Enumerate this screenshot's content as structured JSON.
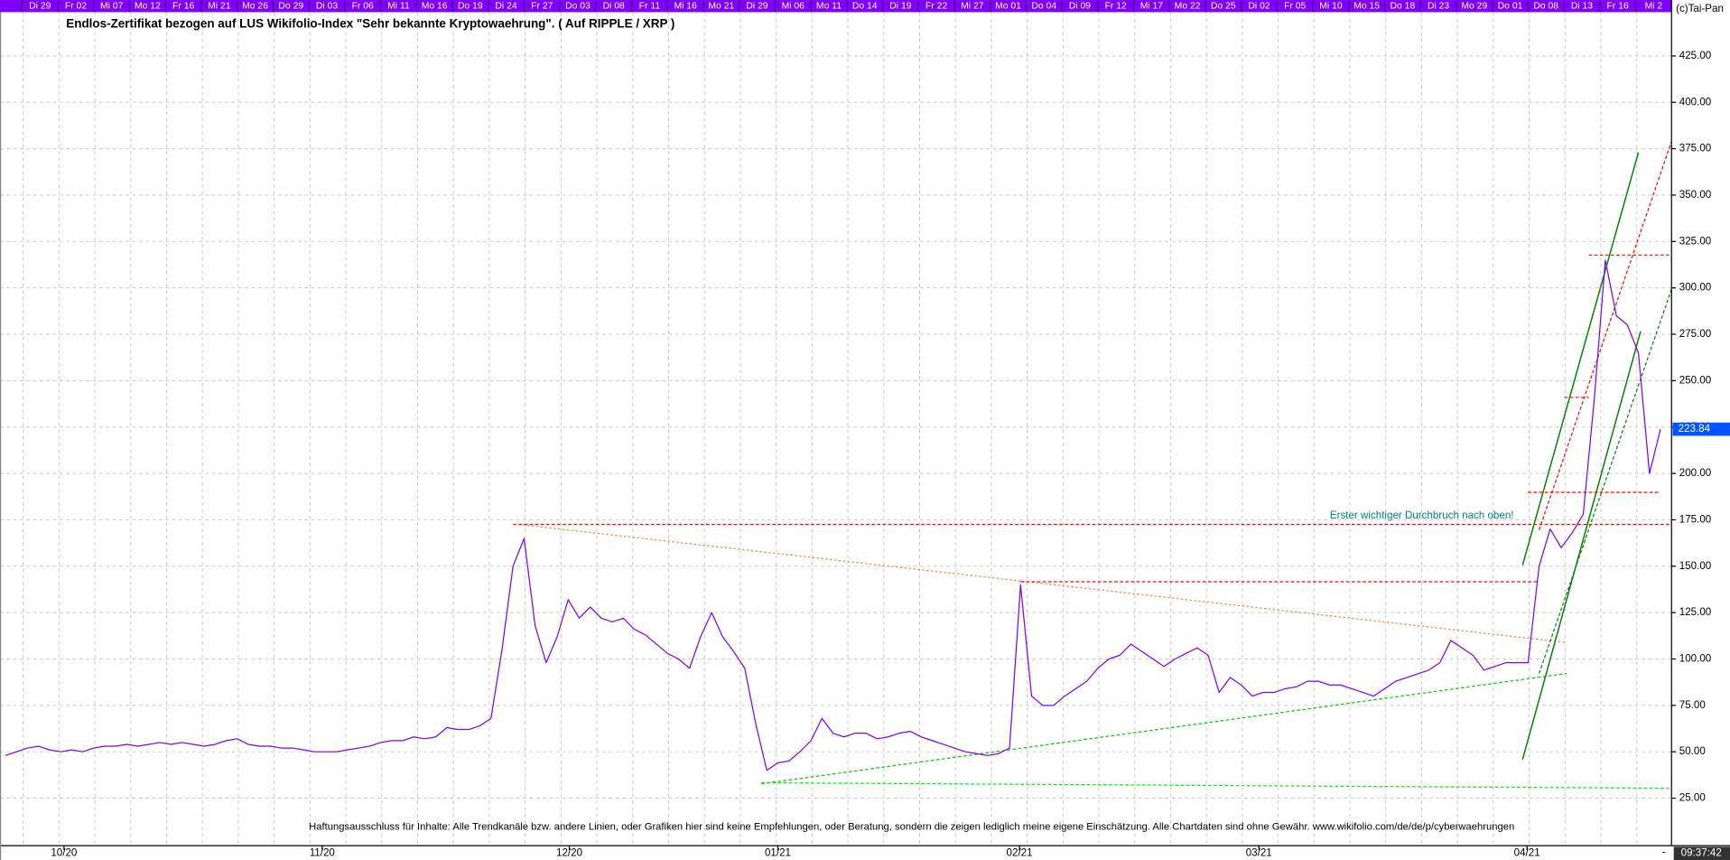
{
  "chart_data": {
    "type": "line",
    "title": "Endlos-Zertifikat bezogen auf LUS Wikifolio-Index \"Sehr bekannte Kryptowaehrung\". ( Auf RIPPLE / XRP )",
    "copyright": "(c)Tai-Pan",
    "timestamp": "09:37:42",
    "bottom_marker": "-",
    "annotation": "Erster wichtiger Durchbruch nach oben!",
    "disclaimer": "Haftungsausschluss für Inhalte: Alle Trendkanäle bzw. andere Linien, oder Grafiken hier sind keine Empfehlungen, oder Beratung, sondern die zeigen lediglich meine eigene Einschätzung. Alle Chartdaten sind ohne Gewähr.  www.wikifolio.com/de/de/p/cyberwaehrungen",
    "top_dates": [
      "Di 29",
      "Fr 02",
      "Mi 07",
      "Mo 12",
      "Fr 16",
      "Mi 21",
      "Mo 26",
      "Do 29",
      "Di 03",
      "Fr 06",
      "Mi 11",
      "Mo 16",
      "Do 19",
      "Di 24",
      "Fr 27",
      "Do 03",
      "Di 08",
      "Fr 11",
      "Mi 16",
      "Mo 21",
      "Di 29",
      "Mi 06",
      "Mo 11",
      "Do 14",
      "Di 19",
      "Fr 22",
      "Mi 27",
      "Mo 01",
      "Do 04",
      "Di 09",
      "Fr 12",
      "Mi 17",
      "Mo 22",
      "Do 25",
      "Di 02",
      "Fr 05",
      "Mi 10",
      "Mo 15",
      "Do 18",
      "Di 23",
      "Mo 29",
      "Do 01",
      "Do 08",
      "Di 13",
      "Fr 16",
      "Mi 2"
    ],
    "color": "#7b00ff",
    "grid": true,
    "values": [
      48,
      50,
      52,
      53,
      51,
      50,
      51,
      50,
      52,
      53,
      53,
      54,
      53,
      54,
      55,
      54,
      55,
      54,
      53,
      54,
      56,
      57,
      54,
      53,
      53,
      52,
      52,
      51,
      50,
      50,
      50,
      51,
      52,
      53,
      55,
      56,
      56,
      58,
      57,
      58,
      63,
      62,
      62,
      64,
      68,
      105,
      150,
      165,
      118,
      98,
      112,
      132,
      122,
      128,
      122,
      120,
      122,
      116,
      113,
      108,
      103,
      100,
      95,
      112,
      125,
      112,
      104,
      95,
      65,
      40,
      44,
      45,
      50,
      56,
      68,
      60,
      58,
      60,
      60,
      57,
      58,
      60,
      61,
      58,
      56,
      54,
      52,
      50,
      49,
      48,
      49,
      52,
      140,
      80,
      75,
      75,
      80,
      84,
      88,
      95,
      100,
      102,
      108,
      104,
      100,
      96,
      100,
      103,
      106,
      102,
      82,
      90,
      86,
      80,
      82,
      82,
      84,
      85,
      88,
      88,
      86,
      86,
      84,
      82,
      80,
      84,
      88,
      90,
      92,
      94,
      98,
      110,
      106,
      102,
      94,
      96,
      98,
      98,
      98,
      150,
      170,
      160,
      168,
      178,
      240,
      315,
      285,
      280,
      265,
      200,
      223.84
    ],
    "xlim": [
      -0.5,
      150.5
    ],
    "xticks": [
      {
        "value": 5.3,
        "label": "10/20"
      },
      {
        "value": 28.7,
        "label": "11/20"
      },
      {
        "value": 51.1,
        "label": "12/20"
      },
      {
        "value": 70,
        "label": "01/21"
      },
      {
        "value": 91.9,
        "label": "02/21"
      },
      {
        "value": 113.6,
        "label": "03/21"
      },
      {
        "value": 137.9,
        "label": "04/21"
      }
    ],
    "ylim": [
      0,
      448
    ],
    "yticks": [
      {
        "value": 25,
        "label": "25.00"
      },
      {
        "value": 50,
        "label": "50.00"
      },
      {
        "value": 75,
        "label": "75.00"
      },
      {
        "value": 100,
        "label": "100.00"
      },
      {
        "value": 125,
        "label": "125.00"
      },
      {
        "value": 150,
        "label": "150.00"
      },
      {
        "value": 175,
        "label": "175.00"
      },
      {
        "value": 200,
        "label": "200.00"
      },
      {
        "value": 225,
        "label": "225.00"
      },
      {
        "value": 250,
        "label": "250.00"
      },
      {
        "value": 275,
        "label": "275.00"
      },
      {
        "value": 300,
        "label": "300.00"
      },
      {
        "value": 325,
        "label": "325.00"
      },
      {
        "value": 350,
        "label": "350.00"
      },
      {
        "value": 375,
        "label": "375.00"
      },
      {
        "value": 400,
        "label": "400.00"
      },
      {
        "value": 425,
        "label": "425.00"
      }
    ]
  }
}
